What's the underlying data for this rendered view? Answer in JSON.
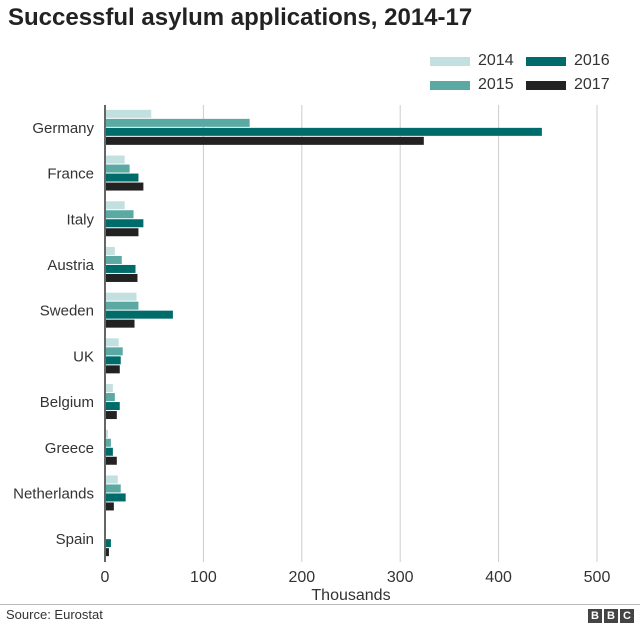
{
  "chart_data": {
    "type": "bar",
    "orientation": "horizontal",
    "title": "Successful asylum applications, 2014-17",
    "xlabel": "Thousands",
    "ylabel": "",
    "xlim": [
      0,
      500
    ],
    "xticks": [
      0,
      100,
      200,
      300,
      400,
      500
    ],
    "grid": true,
    "legend_position": "top-right",
    "categories": [
      "Germany",
      "France",
      "Italy",
      "Austria",
      "Sweden",
      "UK",
      "Belgium",
      "Greece",
      "Netherlands",
      "Spain"
    ],
    "series": [
      {
        "name": "2014",
        "color": "#c2e0df",
        "values": [
          47,
          20,
          20,
          10,
          32,
          14,
          8,
          3,
          13,
          0.5
        ]
      },
      {
        "name": "2015",
        "color": "#5aa9a3",
        "values": [
          147,
          25,
          29,
          17,
          34,
          18,
          10,
          6,
          16,
          1
        ]
      },
      {
        "name": "2016",
        "color": "#006b6b",
        "values": [
          444,
          34,
          39,
          31,
          69,
          16,
          15,
          8,
          21,
          6
        ]
      },
      {
        "name": "2017",
        "color": "#222222",
        "values": [
          324,
          39,
          34,
          33,
          30,
          15,
          12,
          12,
          9,
          4
        ]
      }
    ]
  },
  "footer": {
    "source": "Source: Eurostat",
    "logo": "BBC"
  }
}
